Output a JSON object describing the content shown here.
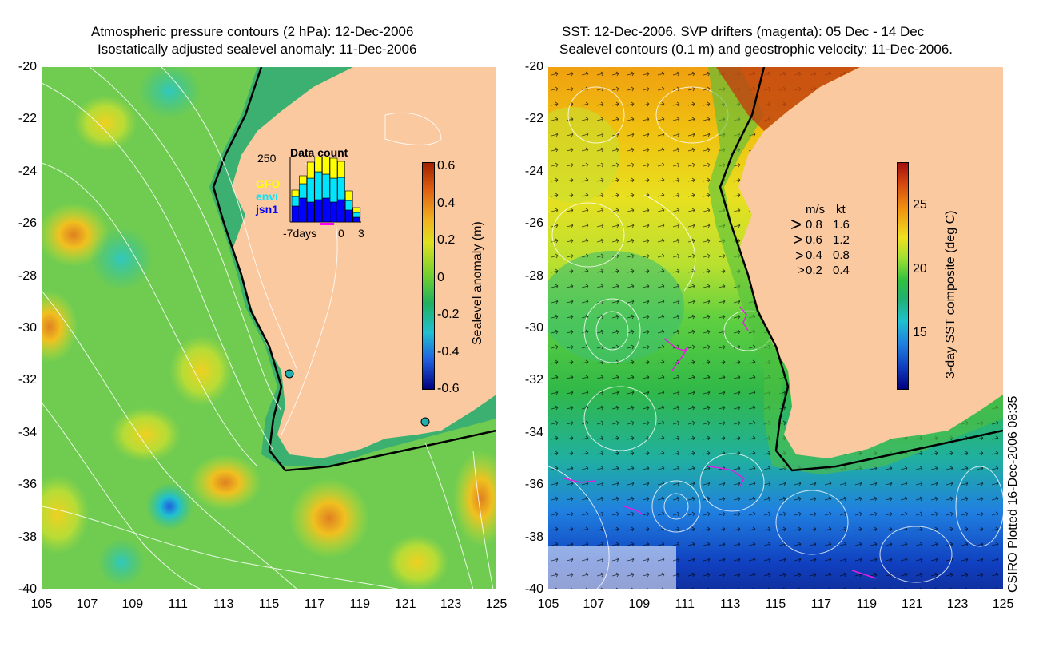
{
  "left_panel": {
    "title_line1": "Atmospheric pressure contours (2 hPa): 12-Dec-2006",
    "title_line2": "Isostatically adjusted sealevel anomaly: 11-Dec-2006",
    "y_ticks": [
      "-20",
      "-22",
      "-24",
      "-26",
      "-28",
      "-30",
      "-32",
      "-34",
      "-36",
      "-38",
      "-40"
    ],
    "x_ticks": [
      "105",
      "107",
      "109",
      "111",
      "113",
      "115",
      "117",
      "119",
      "121",
      "123",
      "125"
    ],
    "colorbar": {
      "label": "Sealevel anomaly (m)",
      "ticks": [
        "0.6",
        "0.4",
        "0.2",
        "0",
        "-0.2",
        "-0.4",
        "-0.6"
      ]
    },
    "inset": {
      "title": "Data count",
      "max_label": "250",
      "legend": [
        {
          "name": "GFO",
          "color": "#ffff00"
        },
        {
          "name": "envi",
          "color": "#00e5ff"
        },
        {
          "name": "jsn1",
          "color": "#0000ff"
        }
      ],
      "x_labels": [
        "-7days",
        "0",
        "3"
      ]
    }
  },
  "right_panel": {
    "title_line1": "SST: 12-Dec-2006. SVP drifters (magenta): 05 Dec - 14 Dec",
    "title_line2": "Sealevel contours (0.1 m) and geostrophic velocity: 11-Dec-2006.",
    "y_ticks": [
      "-20",
      "-22",
      "-24",
      "-26",
      "-28",
      "-30",
      "-32",
      "-34",
      "-36",
      "-38",
      "-40"
    ],
    "x_ticks": [
      "105",
      "107",
      "109",
      "111",
      "113",
      "115",
      "117",
      "119",
      "121",
      "123",
      "125"
    ],
    "colorbar": {
      "label": "3-day SST composite (deg C)",
      "ticks": [
        "25",
        "20",
        "15"
      ]
    },
    "velocity_legend": {
      "header_ms": "m/s",
      "header_kt": "kt",
      "rows": [
        {
          "ms": "0.8",
          "kt": "1.6"
        },
        {
          "ms": "0.6",
          "kt": "1.2"
        },
        {
          "ms": "0.4",
          "kt": "0.8"
        },
        {
          "ms": "0.2",
          "kt": "0.4"
        }
      ]
    }
  },
  "footer": "CSIRO Plotted 16-Dec-2006 08:35",
  "colors": {
    "land": "#fac9a0",
    "ocean_mid": "#3cc060",
    "coast": "#000000"
  }
}
